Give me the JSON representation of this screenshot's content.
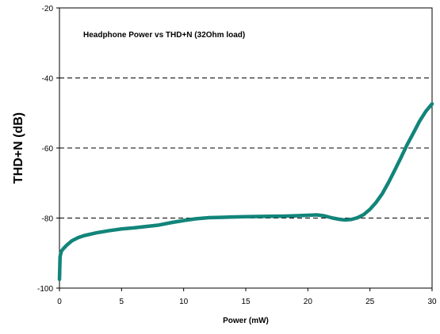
{
  "chart_data": {
    "type": "line",
    "title": "Headphone Power vs THD+N (32Ohm load)",
    "xlabel": "Power (mW)",
    "ylabel": "THD+N (dB)",
    "xlim": [
      0,
      30
    ],
    "ylim": [
      -100,
      -20
    ],
    "x_ticks": [
      0,
      5,
      10,
      15,
      20,
      25,
      30
    ],
    "y_ticks": [
      -100,
      -80,
      -60,
      -40,
      -20
    ],
    "y_dashed_grid": [
      -80,
      -60,
      -40
    ],
    "series": [
      {
        "color": "#12857a",
        "x": [
          0.0,
          0.05,
          0.15,
          0.3,
          0.6,
          1.0,
          1.5,
          2.0,
          3.0,
          4.0,
          5.0,
          6.0,
          7.0,
          8.0,
          9.0,
          10.0,
          11.0,
          12.0,
          13.0,
          14.0,
          15.0,
          16.0,
          17.0,
          18.0,
          19.0,
          20.0,
          20.7,
          21.3,
          22.0,
          22.6,
          23.0,
          23.5,
          24.0,
          24.5,
          25.0,
          25.5,
          26.0,
          26.5,
          27.0,
          27.5,
          28.0,
          28.5,
          29.0,
          29.5,
          30.0
        ],
        "y": [
          -97.5,
          -91.0,
          -89.5,
          -88.8,
          -87.7,
          -86.5,
          -85.6,
          -85.0,
          -84.2,
          -83.6,
          -83.1,
          -82.8,
          -82.4,
          -82.0,
          -81.3,
          -80.7,
          -80.2,
          -79.9,
          -79.8,
          -79.7,
          -79.6,
          -79.55,
          -79.5,
          -79.45,
          -79.35,
          -79.2,
          -79.1,
          -79.35,
          -80.0,
          -80.4,
          -80.55,
          -80.4,
          -79.9,
          -79.0,
          -77.5,
          -75.5,
          -73.0,
          -69.8,
          -66.3,
          -62.7,
          -59.0,
          -55.7,
          -52.3,
          -49.5,
          -47.4
        ]
      }
    ]
  }
}
